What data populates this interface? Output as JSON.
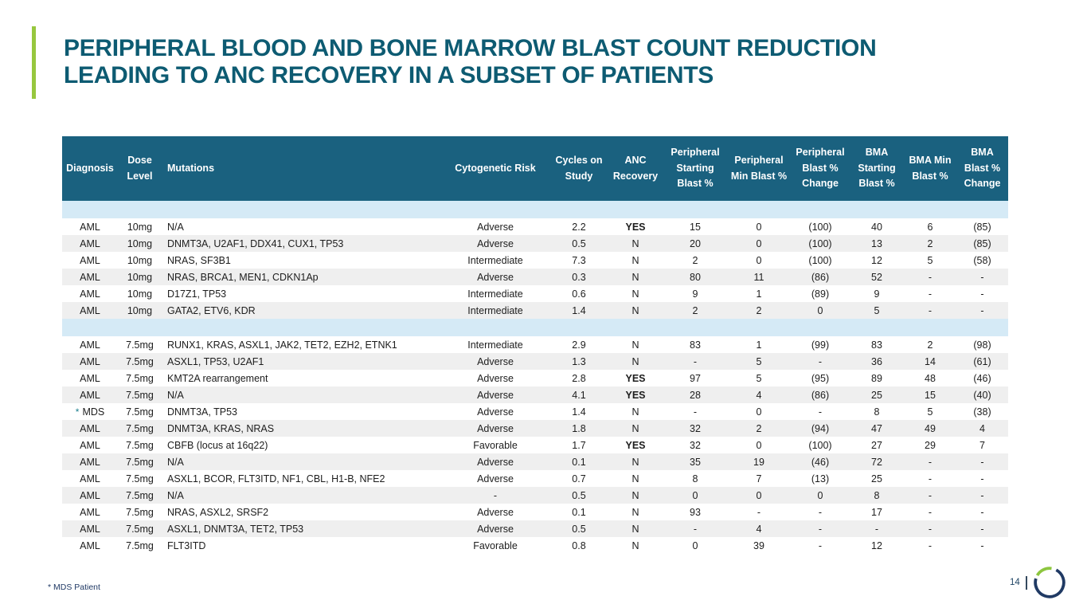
{
  "slide": {
    "title_line1": "PERIPHERAL BLOOD AND BONE MARROW BLAST COUNT REDUCTION",
    "title_line2": "LEADING TO ANC RECOVERY IN A SUBSET OF PATIENTS",
    "footnote": "* MDS Patient",
    "page_number": "14"
  },
  "colors": {
    "title_teal": "#0d5b72",
    "accent_green": "#97c73e",
    "table_header_bg": "#1a617f",
    "group_band_blue": "#d5eaf6",
    "row_alt_gray": "#efefef",
    "footer_navy": "#1f3864",
    "logo_navy": "#203a64",
    "logo_green": "#8dc63f",
    "mds_asterisk_teal": "#1b7f8e"
  },
  "table": {
    "headers": [
      "Diagnosis",
      "Dose Level",
      "Mutations",
      "Cytogenetic Risk",
      "Cycles on Study",
      "ANC Recovery",
      "Peripheral Starting Blast %",
      "Peripheral Min Blast %",
      "Peripheral Blast % Change",
      "BMA Starting Blast %",
      "BMA Min Blast %",
      "BMA Blast % Change"
    ],
    "rows": [
      {
        "type": "separator"
      },
      {
        "diagnosis": "AML",
        "prefix": "",
        "dose": "10mg",
        "mutations": "N/A",
        "risk": "Adverse",
        "cycles": "2.2",
        "anc": "YES",
        "p_start": "15",
        "p_min": "0",
        "p_change": "(100)",
        "bma_start": "40",
        "bma_min": "6",
        "bma_change": "(85)"
      },
      {
        "diagnosis": "AML",
        "prefix": "",
        "dose": "10mg",
        "mutations": "DNMT3A, U2AF1, DDX41, CUX1, TP53",
        "risk": "Adverse",
        "cycles": "0.5",
        "anc": "N",
        "p_start": "20",
        "p_min": "0",
        "p_change": "(100)",
        "bma_start": "13",
        "bma_min": "2",
        "bma_change": "(85)"
      },
      {
        "diagnosis": "AML",
        "prefix": "",
        "dose": "10mg",
        "mutations": "NRAS, SF3B1",
        "risk": "Intermediate",
        "cycles": "7.3",
        "anc": "N",
        "p_start": "2",
        "p_min": "0",
        "p_change": "(100)",
        "bma_start": "12",
        "bma_min": "5",
        "bma_change": "(58)"
      },
      {
        "diagnosis": "AML",
        "prefix": "",
        "dose": "10mg",
        "mutations": "NRAS, BRCA1, MEN1, CDKN1Ap",
        "risk": "Adverse",
        "cycles": "0.3",
        "anc": "N",
        "p_start": "80",
        "p_min": "11",
        "p_change": "(86)",
        "bma_start": "52",
        "bma_min": "-",
        "bma_change": "-"
      },
      {
        "diagnosis": "AML",
        "prefix": "",
        "dose": "10mg",
        "mutations": "D17Z1, TP53",
        "risk": "Intermediate",
        "cycles": "0.6",
        "anc": "N",
        "p_start": "9",
        "p_min": "1",
        "p_change": "(89)",
        "bma_start": "9",
        "bma_min": "-",
        "bma_change": "-"
      },
      {
        "diagnosis": "AML",
        "prefix": "",
        "dose": "10mg",
        "mutations": "GATA2, ETV6, KDR",
        "risk": "Intermediate",
        "cycles": "1.4",
        "anc": "N",
        "p_start": "2",
        "p_min": "2",
        "p_change": "0",
        "bma_start": "5",
        "bma_min": "-",
        "bma_change": "-"
      },
      {
        "type": "separator"
      },
      {
        "diagnosis": "AML",
        "prefix": "",
        "dose": "7.5mg",
        "mutations": "RUNX1, KRAS, ASXL1, JAK2, TET2, EZH2, ETNK1",
        "risk": "Intermediate",
        "cycles": "2.9",
        "anc": "N",
        "p_start": "83",
        "p_min": "1",
        "p_change": "(99)",
        "bma_start": "83",
        "bma_min": "2",
        "bma_change": "(98)"
      },
      {
        "diagnosis": "AML",
        "prefix": "",
        "dose": "7.5mg",
        "mutations": "ASXL1, TP53, U2AF1",
        "risk": "Adverse",
        "cycles": "1.3",
        "anc": "N",
        "p_start": "-",
        "p_min": "5",
        "p_change": "-",
        "bma_start": "36",
        "bma_min": "14",
        "bma_change": "(61)"
      },
      {
        "diagnosis": "AML",
        "prefix": "",
        "dose": "7.5mg",
        "mutations": "KMT2A rearrangement",
        "risk": "Adverse",
        "cycles": "2.8",
        "anc": "YES",
        "p_start": "97",
        "p_min": "5",
        "p_change": "(95)",
        "bma_start": "89",
        "bma_min": "48",
        "bma_change": "(46)"
      },
      {
        "diagnosis": "AML",
        "prefix": "",
        "dose": "7.5mg",
        "mutations": "N/A",
        "risk": "Adverse",
        "cycles": "4.1",
        "anc": "YES",
        "p_start": "28",
        "p_min": "4",
        "p_change": "(86)",
        "bma_start": "25",
        "bma_min": "15",
        "bma_change": "(40)"
      },
      {
        "diagnosis": "MDS",
        "prefix": "*",
        "dose": "7.5mg",
        "mutations": "DNMT3A, TP53",
        "risk": "Adverse",
        "cycles": "1.4",
        "anc": "N",
        "p_start": "-",
        "p_min": "0",
        "p_change": "-",
        "bma_start": "8",
        "bma_min": "5",
        "bma_change": "(38)"
      },
      {
        "diagnosis": "AML",
        "prefix": "",
        "dose": "7.5mg",
        "mutations": "DNMT3A, KRAS, NRAS",
        "risk": "Adverse",
        "cycles": "1.8",
        "anc": "N",
        "p_start": "32",
        "p_min": "2",
        "p_change": "(94)",
        "bma_start": "47",
        "bma_min": "49",
        "bma_change": "4"
      },
      {
        "diagnosis": "AML",
        "prefix": "",
        "dose": "7.5mg",
        "mutations": "CBFB (locus at 16q22)",
        "risk": "Favorable",
        "cycles": "1.7",
        "anc": "YES",
        "p_start": "32",
        "p_min": "0",
        "p_change": "(100)",
        "bma_start": "27",
        "bma_min": "29",
        "bma_change": "7"
      },
      {
        "diagnosis": "AML",
        "prefix": "",
        "dose": "7.5mg",
        "mutations": "N/A",
        "risk": "Adverse",
        "cycles": "0.1",
        "anc": "N",
        "p_start": "35",
        "p_min": "19",
        "p_change": "(46)",
        "bma_start": "72",
        "bma_min": "-",
        "bma_change": "-"
      },
      {
        "diagnosis": "AML",
        "prefix": "",
        "dose": "7.5mg",
        "mutations": "ASXL1, BCOR, FLT3ITD, NF1, CBL, H1-B, NFE2",
        "risk": "Adverse",
        "cycles": "0.7",
        "anc": "N",
        "p_start": "8",
        "p_min": "7",
        "p_change": "(13)",
        "bma_start": "25",
        "bma_min": "-",
        "bma_change": "-"
      },
      {
        "diagnosis": "AML",
        "prefix": "",
        "dose": "7.5mg",
        "mutations": "N/A",
        "risk": "-",
        "cycles": "0.5",
        "anc": "N",
        "p_start": "0",
        "p_min": "0",
        "p_change": "0",
        "bma_start": "8",
        "bma_min": "-",
        "bma_change": "-"
      },
      {
        "diagnosis": "AML",
        "prefix": "",
        "dose": "7.5mg",
        "mutations": "NRAS, ASXL2, SRSF2",
        "risk": "Adverse",
        "cycles": "0.1",
        "anc": "N",
        "p_start": "93",
        "p_min": "-",
        "p_change": "-",
        "bma_start": "17",
        "bma_min": "-",
        "bma_change": "-"
      },
      {
        "diagnosis": "AML",
        "prefix": "",
        "dose": "7.5mg",
        "mutations": "ASXL1, DNMT3A, TET2, TP53",
        "risk": "Adverse",
        "cycles": "0.5",
        "anc": "N",
        "p_start": "-",
        "p_min": "4",
        "p_change": "-",
        "bma_start": "-",
        "bma_min": "-",
        "bma_change": "-"
      },
      {
        "diagnosis": "AML",
        "prefix": "",
        "dose": "7.5mg",
        "mutations": "FLT3ITD",
        "risk": "Favorable",
        "cycles": "0.8",
        "anc": "N",
        "p_start": "0",
        "p_min": "39",
        "p_change": "-",
        "bma_start": "12",
        "bma_min": "-",
        "bma_change": "-"
      }
    ]
  }
}
